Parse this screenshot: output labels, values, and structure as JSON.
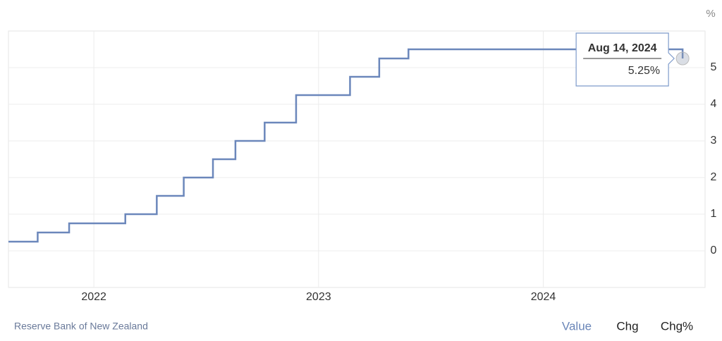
{
  "chart_data": {
    "type": "line",
    "step": true,
    "unit": "%",
    "x": [
      2021.62,
      2021.75,
      2021.89,
      2022.14,
      2022.28,
      2022.4,
      2022.53,
      2022.63,
      2022.76,
      2022.9,
      2023.14,
      2023.27,
      2023.4,
      2024.62
    ],
    "series": [
      {
        "color": "#6b87bb",
        "values": [
          0.25,
          0.5,
          0.75,
          1,
          1.5,
          2,
          2.5,
          3,
          3.5,
          4.25,
          4.75,
          5.25,
          5.5,
          5.25
        ]
      }
    ],
    "xlim": [
      2021.62,
      2024.72
    ],
    "xticks": [
      2022,
      2023,
      2024
    ],
    "ylim": [
      -1,
      6
    ],
    "yticks": [
      0,
      1,
      2,
      3,
      4,
      5
    ],
    "grid": true,
    "y_axis_side": "right",
    "tooltip": {
      "date": "Aug 14, 2024",
      "label": "5.25%"
    },
    "source": "Reserve Bank of New Zealand",
    "tabs": [
      "Value",
      "Chg",
      "Chg%"
    ]
  }
}
